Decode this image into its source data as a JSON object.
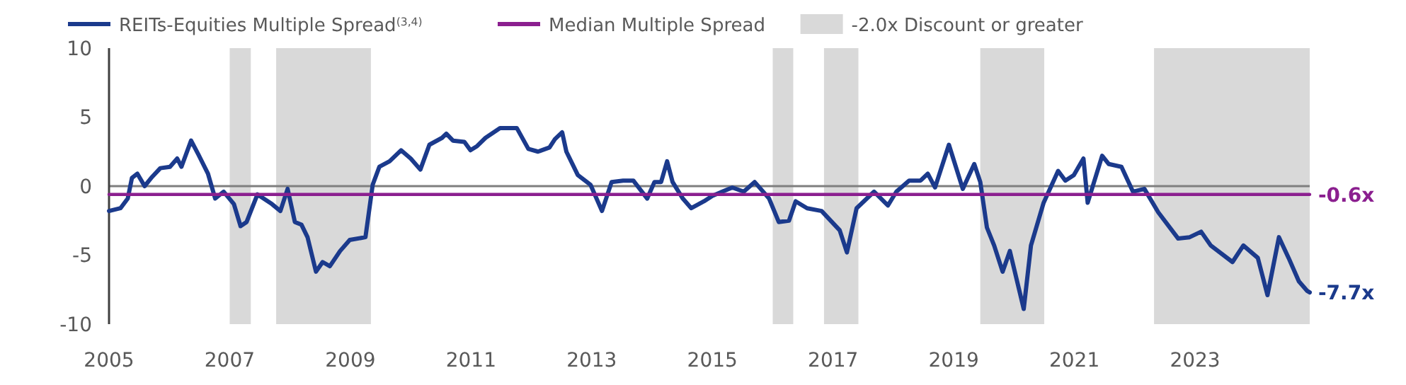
{
  "chart_data": {
    "type": "line",
    "xlim": [
      2005,
      2024.9
    ],
    "xticks": [
      2005,
      2007,
      2009,
      2011,
      2013,
      2015,
      2017,
      2019,
      2021,
      2023
    ],
    "ylim": [
      -10,
      10
    ],
    "yticks": [
      -10,
      -5,
      0,
      5,
      10
    ],
    "grid": false,
    "legend": "top",
    "line_style": "solid",
    "marker": "none",
    "series": [
      {
        "name": "REITs-Equities Multiple Spread$^{(3,4)}$",
        "color": "#1b3a8c",
        "x": [
          2005.0,
          2005.19,
          2005.31,
          2005.38,
          2005.47,
          2005.59,
          2005.7,
          2005.85,
          2006.01,
          2006.13,
          2006.2,
          2006.36,
          2006.48,
          2006.64,
          2006.76,
          2006.9,
          2007.07,
          2007.18,
          2007.28,
          2007.46,
          2007.7,
          2007.84,
          2007.96,
          2008.08,
          2008.19,
          2008.29,
          2008.43,
          2008.54,
          2008.66,
          2008.83,
          2008.99,
          2009.25,
          2009.37,
          2009.48,
          2009.65,
          2009.84,
          2010.0,
          2010.16,
          2010.31,
          2010.52,
          2010.59,
          2010.7,
          2010.89,
          2010.99,
          2011.1,
          2011.24,
          2011.48,
          2011.76,
          2011.95,
          2012.11,
          2012.3,
          2012.39,
          2012.51,
          2012.58,
          2012.77,
          2012.98,
          2013.17,
          2013.33,
          2013.52,
          2013.69,
          2013.92,
          2014.04,
          2014.15,
          2014.25,
          2014.34,
          2014.51,
          2014.65,
          2014.86,
          2015.0,
          2015.33,
          2015.52,
          2015.7,
          2015.94,
          2016.1,
          2016.27,
          2016.38,
          2016.57,
          2016.81,
          2017.11,
          2017.23,
          2017.39,
          2017.68,
          2017.91,
          2018.05,
          2018.26,
          2018.45,
          2018.57,
          2018.69,
          2018.92,
          2019.15,
          2019.34,
          2019.44,
          2019.55,
          2019.67,
          2019.81,
          2019.93,
          2020.16,
          2020.28,
          2020.49,
          2020.73,
          2020.85,
          2020.99,
          2021.15,
          2021.22,
          2021.46,
          2021.57,
          2021.78,
          2021.97,
          2022.16,
          2022.39,
          2022.72,
          2022.91,
          2023.1,
          2023.26,
          2023.62,
          2023.8,
          2024.04,
          2024.2,
          2024.39,
          2024.55,
          2024.72,
          2024.86,
          2024.9
        ],
        "values": [
          -1.8,
          -1.6,
          -0.9,
          0.6,
          0.9,
          0,
          0.6,
          1.3,
          1.4,
          2.0,
          1.4,
          3.3,
          2.3,
          0.9,
          -0.9,
          -0.4,
          -1.3,
          -2.9,
          -2.6,
          -0.6,
          -1.3,
          -1.8,
          -0.2,
          -2.6,
          -2.8,
          -3.7,
          -6.2,
          -5.5,
          -5.8,
          -4.7,
          -3.9,
          -3.7,
          0.1,
          1.4,
          1.8,
          2.6,
          2.0,
          1.2,
          3.0,
          3.5,
          3.8,
          3.3,
          3.2,
          2.6,
          2.9,
          3.5,
          4.2,
          4.2,
          2.7,
          2.5,
          2.8,
          3.4,
          3.9,
          2.5,
          0.8,
          0.1,
          -1.8,
          0.3,
          0.4,
          0.4,
          -0.9,
          0.3,
          0.3,
          1.8,
          0.3,
          -0.9,
          -1.6,
          -1.1,
          -0.7,
          -0.1,
          -0.4,
          0.3,
          -0.9,
          -2.6,
          -2.5,
          -1.1,
          -1.6,
          -1.8,
          -3.2,
          -4.8,
          -1.6,
          -0.4,
          -1.4,
          -0.4,
          0.4,
          0.4,
          0.9,
          -0.1,
          3.0,
          -0.2,
          1.6,
          0.3,
          -3.0,
          -4.3,
          -6.2,
          -4.7,
          -8.9,
          -4.3,
          -1.2,
          1.1,
          0.4,
          0.8,
          2.0,
          -1.2,
          2.2,
          1.6,
          1.4,
          -0.4,
          -0.2,
          -1.9,
          -3.8,
          -3.7,
          -3.3,
          -4.3,
          -5.5,
          -4.3,
          -5.2,
          -7.9,
          -3.7,
          -5.2,
          -6.9,
          -7.6,
          -7.7
        ]
      },
      {
        "name": "Median Multiple Spread",
        "color": "#8b1f8f",
        "x": [
          2005,
          2024.9
        ],
        "values": [
          -0.6,
          -0.6
        ]
      }
    ],
    "ref_lines": [
      {
        "axis": "y",
        "value": 0,
        "color": "#7f7f7f"
      }
    ],
    "bands": [
      {
        "axis": "x",
        "from": 2007.0,
        "to": 2007.35,
        "label": "-2.0x Discount or greater",
        "color": "#d9d9d9"
      },
      {
        "axis": "x",
        "from": 2007.77,
        "to": 2009.34,
        "color": "#d9d9d9"
      },
      {
        "axis": "x",
        "from": 2016.0,
        "to": 2016.34,
        "color": "#d9d9d9"
      },
      {
        "axis": "x",
        "from": 2016.85,
        "to": 2017.42,
        "color": "#d9d9d9"
      },
      {
        "axis": "x",
        "from": 2019.44,
        "to": 2020.5,
        "color": "#d9d9d9"
      },
      {
        "axis": "x",
        "from": 2022.32,
        "to": 2024.9,
        "color": "#d9d9d9"
      }
    ],
    "annotations": [
      {
        "text": "-0.6x",
        "x": 2024.9,
        "y": -0.6
      },
      {
        "text": "-7.7x",
        "x": 2024.9,
        "y": -7.7
      }
    ]
  }
}
